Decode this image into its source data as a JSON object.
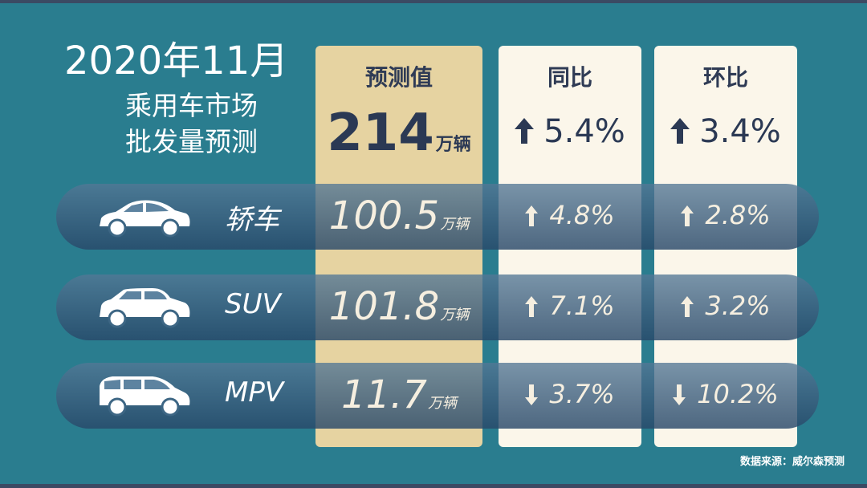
{
  "title": {
    "year_month": "2020年11月",
    "line2": "乘用车市场",
    "line3": "批发量预测"
  },
  "columns": {
    "forecast": {
      "header": "预测值",
      "total_value": "214",
      "total_unit": "万辆"
    },
    "yoy": {
      "header": "同比",
      "total_change": "5.4%",
      "direction": "up"
    },
    "mom": {
      "header": "环比",
      "total_change": "3.4%",
      "direction": "up"
    }
  },
  "rows": [
    {
      "label": "轿车",
      "icon": "sedan-icon",
      "value": "100.5",
      "unit": "万辆",
      "yoy": "4.8%",
      "yoy_direction": "up",
      "mom": "2.8%",
      "mom_direction": "up"
    },
    {
      "label": "SUV",
      "icon": "suv-icon",
      "value": "101.8",
      "unit": "万辆",
      "yoy": "7.1%",
      "yoy_direction": "up",
      "mom": "3.2%",
      "mom_direction": "up"
    },
    {
      "label": "MPV",
      "icon": "mpv-icon",
      "value": "11.7",
      "unit": "万辆",
      "yoy": "3.7%",
      "yoy_direction": "down",
      "mom": "10.2%",
      "mom_direction": "down"
    }
  ],
  "source": "数据来源：威尔森预测",
  "colors": {
    "background": "#2a7d8f",
    "forecast_column": "#e6d3a1",
    "change_columns": "#fbf6ea",
    "dark_text": "#2b3954"
  }
}
